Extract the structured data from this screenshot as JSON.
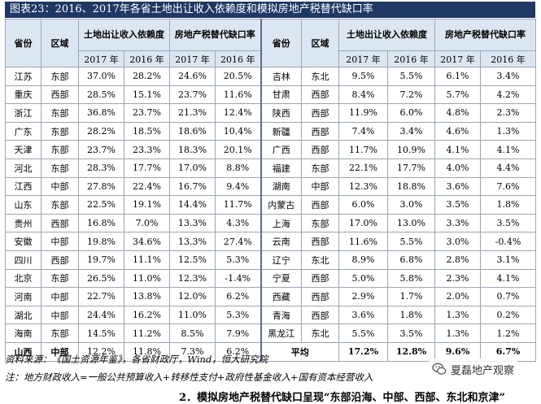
{
  "title": "图表23：2016、2017年各省土地出让收入依赖度和模拟房地产税替代缺口率",
  "headers": {
    "province": "省份",
    "region": "区域",
    "land_dep": "土地出让收入依赖度",
    "tax_gap": "房地产税替代缺口率",
    "y2017": "2017 年",
    "y2016": "2016 年"
  },
  "rows": [
    [
      "江苏",
      "东部",
      "37.0%",
      "28.2%",
      "24.6%",
      "20.5%",
      "吉林",
      "东北",
      "9.5%",
      "5.5%",
      "6.1%",
      "3.4%"
    ],
    [
      "重庆",
      "西部",
      "28.5%",
      "15.1%",
      "23.7%",
      "11.6%",
      "甘肃",
      "西部",
      "8.4%",
      "7.2%",
      "5.7%",
      "4.2%"
    ],
    [
      "浙江",
      "东部",
      "36.8%",
      "23.7%",
      "21.3%",
      "12.4%",
      "陕西",
      "西部",
      "11.9%",
      "6.0%",
      "4.8%",
      "2.3%"
    ],
    [
      "广东",
      "东部",
      "28.2%",
      "18.5%",
      "18.6%",
      "10.4%",
      "新疆",
      "西部",
      "7.4%",
      "3.4%",
      "4.6%",
      "1.3%"
    ],
    [
      "天津",
      "东部",
      "23.7%",
      "23.3%",
      "18.3%",
      "20.1%",
      "广西",
      "西部",
      "11.7%",
      "10.9%",
      "4.1%",
      "4.1%"
    ],
    [
      "河北",
      "东部",
      "28.3%",
      "17.7%",
      "17.0%",
      "8.8%",
      "福建",
      "东部",
      "22.1%",
      "17.7%",
      "4.0%",
      "4.4%"
    ],
    [
      "江西",
      "中部",
      "27.8%",
      "22.4%",
      "16.7%",
      "9.4%",
      "湖南",
      "中部",
      "12.3%",
      "18.8%",
      "3.6%",
      "7.6%"
    ],
    [
      "山东",
      "东部",
      "22.5%",
      "19.1%",
      "14.4%",
      "11.7%",
      "内蒙古",
      "西部",
      "6.0%",
      "3.0%",
      "3.5%",
      "1.8%"
    ],
    [
      "贵州",
      "西部",
      "16.8%",
      "7.0%",
      "13.3%",
      "4.3%",
      "上海",
      "东部",
      "17.0%",
      "13.0%",
      "3.3%",
      "3.5%"
    ],
    [
      "安徽",
      "中部",
      "19.8%",
      "34.6%",
      "13.3%",
      "27.4%",
      "云南",
      "西部",
      "11.6%",
      "5.5%",
      "3.0%",
      "-0.4%"
    ],
    [
      "四川",
      "西部",
      "19.7%",
      "11.1%",
      "12.5%",
      "5.3%",
      "辽宁",
      "东北",
      "8.9%",
      "6.8%",
      "2.8%",
      "3.1%"
    ],
    [
      "北京",
      "东部",
      "26.5%",
      "11.0%",
      "12.3%",
      "-1.4%",
      "宁夏",
      "西部",
      "5.0%",
      "5.8%",
      "2.3%",
      "4.1%"
    ],
    [
      "河南",
      "中部",
      "22.7%",
      "13.8%",
      "12.0%",
      "6.2%",
      "西藏",
      "西部",
      "2.9%",
      "1.7%",
      "2.0%",
      "0.7%"
    ],
    [
      "湖北",
      "中部",
      "24.4%",
      "16.2%",
      "11.0%",
      "5.3%",
      "青海",
      "西部",
      "3.6%",
      "1.8%",
      "1.3%",
      "0.2%"
    ],
    [
      "海南",
      "东部",
      "14.5%",
      "11.2%",
      "8.5%",
      "7.9%",
      "黑龙江",
      "东北",
      "5.5%",
      "3.5%",
      "1.3%",
      "1.2%"
    ]
  ],
  "last_row": {
    "left": [
      "山西",
      "中部",
      "12.2%",
      "11.8%",
      "7.3%",
      "6.2%"
    ],
    "avg_label": "平均",
    "avg": [
      "17.2%",
      "12.8%",
      "9.6%",
      "6.7%"
    ]
  },
  "source": "资料来源：《国土资源年鉴》，各省财政厅，Wind，恒大研究院",
  "note": "注：地方财政收入=一般公共预算收入+转移性支付+政府性基金收入+国有资本经营收入",
  "watermark": "夏磊地产观察",
  "cutoff_text": "2．模拟房地产税替代缺口呈现“东部沿海、中部、西部、东北和京津”"
}
